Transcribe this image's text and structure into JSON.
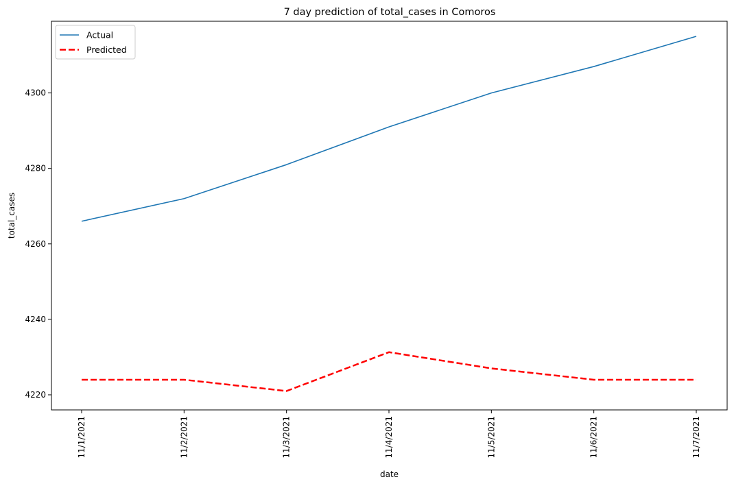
{
  "chart_data": {
    "type": "line",
    "title": "7 day prediction of total_cases in Comoros",
    "xlabel": "date",
    "ylabel": "total_cases",
    "categories": [
      "11/1/2021",
      "11/2/2021",
      "11/3/2021",
      "11/4/2021",
      "11/5/2021",
      "11/6/2021",
      "11/7/2021"
    ],
    "yticks": [
      4220,
      4240,
      4260,
      4280,
      4300
    ],
    "ylim": [
      4216,
      4319
    ],
    "grid": false,
    "legend_position": "top-left",
    "series": [
      {
        "name": "Actual",
        "color": "#1f77b4",
        "style": "solid",
        "values": [
          4266,
          4272,
          4281,
          4291,
          4300,
          4307,
          4315
        ]
      },
      {
        "name": "Predicted",
        "color": "#ff0000",
        "style": "dashed",
        "values": [
          4224,
          4224,
          4221,
          4231.3,
          4227,
          4224,
          4224
        ]
      }
    ]
  }
}
